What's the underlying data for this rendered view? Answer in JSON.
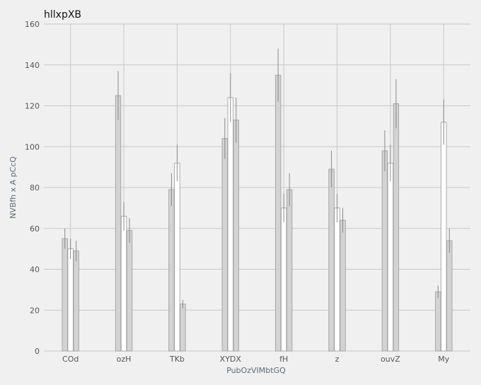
{
  "chart_data": {
    "type": "bar",
    "title": "hllxpXB",
    "xlabel": "PubOzVIMbtGQ",
    "ylabel": "NVBfh x A pCcQ",
    "ylim": [
      0,
      160
    ],
    "yticks": [
      0,
      20,
      40,
      60,
      80,
      100,
      120,
      140,
      160
    ],
    "grid": true,
    "categories": [
      "COd",
      "ozH",
      "TKb",
      "XYDX",
      "fH",
      "z",
      "ouvZ",
      "My"
    ],
    "series": [
      {
        "color": "#d3d3d3",
        "values": [
          55,
          125,
          79,
          104,
          135,
          89,
          98,
          29
        ],
        "errors": [
          5,
          12,
          8,
          10,
          13,
          9,
          10,
          3
        ]
      },
      {
        "color": "#ffffff",
        "values": [
          50,
          66,
          92,
          124,
          70,
          70,
          92,
          112
        ],
        "errors": [
          5,
          7,
          9,
          12,
          7,
          7,
          9,
          11
        ]
      },
      {
        "color": "#d3d3d3",
        "values": [
          49,
          59,
          23,
          113,
          79,
          64,
          121,
          54
        ],
        "errors": [
          5,
          6,
          2,
          11,
          8,
          6,
          12,
          6
        ]
      }
    ]
  }
}
